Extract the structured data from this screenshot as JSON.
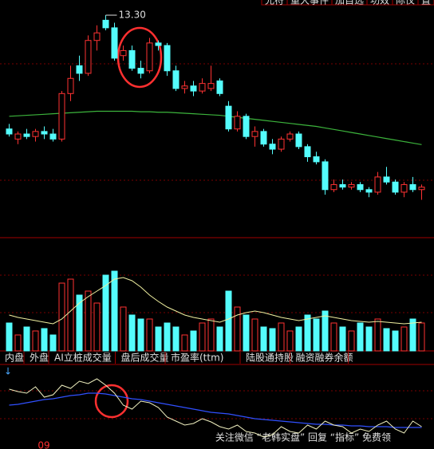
{
  "chart_data": {
    "type": "candlestick",
    "top_buttons": [
      "允符",
      "重大事件",
      "加自选",
      "功效",
      "际仪",
      "置"
    ],
    "max_label": "13.30",
    "ylim": [
      8.9,
      13.6
    ],
    "candles": [
      [
        11.05,
        11.15,
        10.9,
        10.95
      ],
      [
        10.85,
        11.0,
        10.75,
        10.95
      ],
      [
        10.95,
        11.05,
        10.85,
        10.9
      ],
      [
        10.9,
        11.05,
        10.8,
        11.0
      ],
      [
        11.0,
        11.1,
        10.85,
        10.95
      ],
      [
        10.95,
        11.05,
        10.8,
        10.85
      ],
      [
        10.85,
        11.8,
        10.8,
        11.75
      ],
      [
        11.75,
        12.3,
        11.6,
        12.05
      ],
      [
        12.3,
        12.5,
        12.0,
        12.15
      ],
      [
        12.15,
        12.9,
        12.1,
        12.8
      ],
      [
        12.8,
        13.1,
        12.6,
        12.95
      ],
      [
        13.2,
        13.3,
        13.0,
        13.05
      ],
      [
        13.05,
        13.15,
        12.4,
        12.45
      ],
      [
        12.5,
        12.7,
        12.4,
        12.6
      ],
      [
        12.6,
        12.7,
        12.2,
        12.25
      ],
      [
        12.25,
        12.4,
        12.05,
        12.15
      ],
      [
        12.2,
        12.85,
        12.15,
        12.75
      ],
      [
        12.75,
        12.8,
        12.6,
        12.7
      ],
      [
        12.7,
        12.75,
        12.1,
        12.2
      ],
      [
        12.2,
        12.3,
        11.8,
        11.85
      ],
      [
        11.85,
        12.0,
        11.75,
        11.9
      ],
      [
        11.9,
        12.0,
        11.7,
        11.8
      ],
      [
        11.8,
        12.05,
        11.75,
        11.95
      ],
      [
        11.85,
        12.3,
        11.8,
        11.95
      ],
      [
        12.0,
        12.05,
        11.7,
        11.75
      ],
      [
        11.5,
        11.6,
        11.0,
        11.05
      ],
      [
        11.05,
        11.4,
        11.0,
        11.3
      ],
      [
        11.3,
        11.35,
        10.85,
        10.9
      ],
      [
        10.9,
        11.1,
        10.7,
        11.0
      ],
      [
        11.0,
        11.05,
        10.7,
        10.75
      ],
      [
        10.75,
        10.85,
        10.55,
        10.65
      ],
      [
        10.65,
        10.9,
        10.6,
        10.85
      ],
      [
        10.85,
        11.0,
        10.8,
        10.95
      ],
      [
        10.95,
        11.0,
        10.65,
        10.7
      ],
      [
        10.7,
        10.75,
        10.4,
        10.5
      ],
      [
        10.5,
        10.6,
        10.35,
        10.4
      ],
      [
        10.4,
        10.45,
        9.75,
        9.85
      ],
      [
        9.85,
        10.05,
        9.8,
        9.95
      ],
      [
        9.95,
        10.05,
        9.85,
        9.9
      ],
      [
        9.9,
        10.0,
        9.85,
        9.95
      ],
      [
        9.95,
        10.0,
        9.8,
        9.85
      ],
      [
        9.85,
        9.9,
        9.7,
        9.8
      ],
      [
        9.8,
        10.2,
        9.75,
        10.1
      ],
      [
        10.1,
        10.3,
        9.95,
        10.0
      ],
      [
        10.0,
        10.05,
        9.75,
        9.8
      ],
      [
        9.8,
        10.0,
        9.7,
        9.95
      ],
      [
        9.95,
        10.1,
        9.8,
        9.85
      ],
      [
        9.85,
        9.95,
        9.65,
        9.9
      ]
    ],
    "ma": [
      11.3,
      11.31,
      11.32,
      11.33,
      11.34,
      11.35,
      11.36,
      11.37,
      11.38,
      11.39,
      11.4,
      11.4,
      11.4,
      11.4,
      11.4,
      11.39,
      11.39,
      11.38,
      11.38,
      11.37,
      11.36,
      11.35,
      11.34,
      11.33,
      11.32,
      11.3,
      11.28,
      11.26,
      11.24,
      11.22,
      11.2,
      11.18,
      11.16,
      11.14,
      11.12,
      11.1,
      11.07,
      11.04,
      11.01,
      10.98,
      10.95,
      10.92,
      10.89,
      10.86,
      10.83,
      10.8,
      10.77,
      10.74
    ],
    "volume_lim": [
      0,
      130
    ],
    "volume": [
      35,
      20,
      30,
      25,
      28,
      20,
      85,
      90,
      70,
      75,
      60,
      95,
      100,
      55,
      45,
      40,
      40,
      30,
      35,
      30,
      20,
      25,
      35,
      40,
      30,
      75,
      55,
      45,
      40,
      30,
      28,
      35,
      25,
      30,
      45,
      40,
      50,
      35,
      30,
      25,
      35,
      30,
      40,
      28,
      25,
      30,
      40,
      35
    ],
    "volume_ma": [
      45,
      42,
      40,
      38,
      36,
      34,
      40,
      50,
      60,
      68,
      75,
      82,
      90,
      92,
      88,
      80,
      70,
      62,
      55,
      50,
      45,
      42,
      40,
      38,
      36,
      40,
      45,
      48,
      50,
      48,
      45,
      42,
      40,
      38,
      40,
      42,
      44,
      42,
      40,
      38,
      37,
      36,
      37,
      36,
      35,
      34,
      35,
      36
    ],
    "tabs": [
      "内盘",
      "外盘",
      "AI立桩成交量",
      "盘后成交量",
      "市盈率(ttm)",
      "陆股通持股",
      "融资融券余额"
    ],
    "indicator_lim": [
      0,
      100
    ],
    "indicator_white": [
      75,
      72,
      70,
      78,
      65,
      68,
      80,
      76,
      85,
      82,
      88,
      80,
      70,
      55,
      50,
      60,
      58,
      52,
      40,
      35,
      30,
      32,
      38,
      34,
      28,
      25,
      30,
      22,
      20,
      15,
      18,
      28,
      22,
      20,
      30,
      25,
      35,
      30,
      28,
      20,
      25,
      22,
      30,
      35,
      25,
      20,
      35,
      28
    ],
    "indicator_blue": [
      55,
      56,
      58,
      60,
      62,
      63,
      65,
      67,
      68,
      70,
      70,
      69,
      67,
      65,
      63,
      62,
      60,
      58,
      56,
      54,
      52,
      50,
      48,
      46,
      45,
      44,
      42,
      40,
      38,
      37,
      36,
      35,
      34,
      33,
      32,
      31,
      31,
      30,
      30,
      29,
      29,
      28,
      28,
      28,
      27,
      27,
      27,
      27
    ],
    "bottom_label": "09",
    "watermark": "关注微信 “老韩实盘” 回复 “指标” 免费领"
  }
}
